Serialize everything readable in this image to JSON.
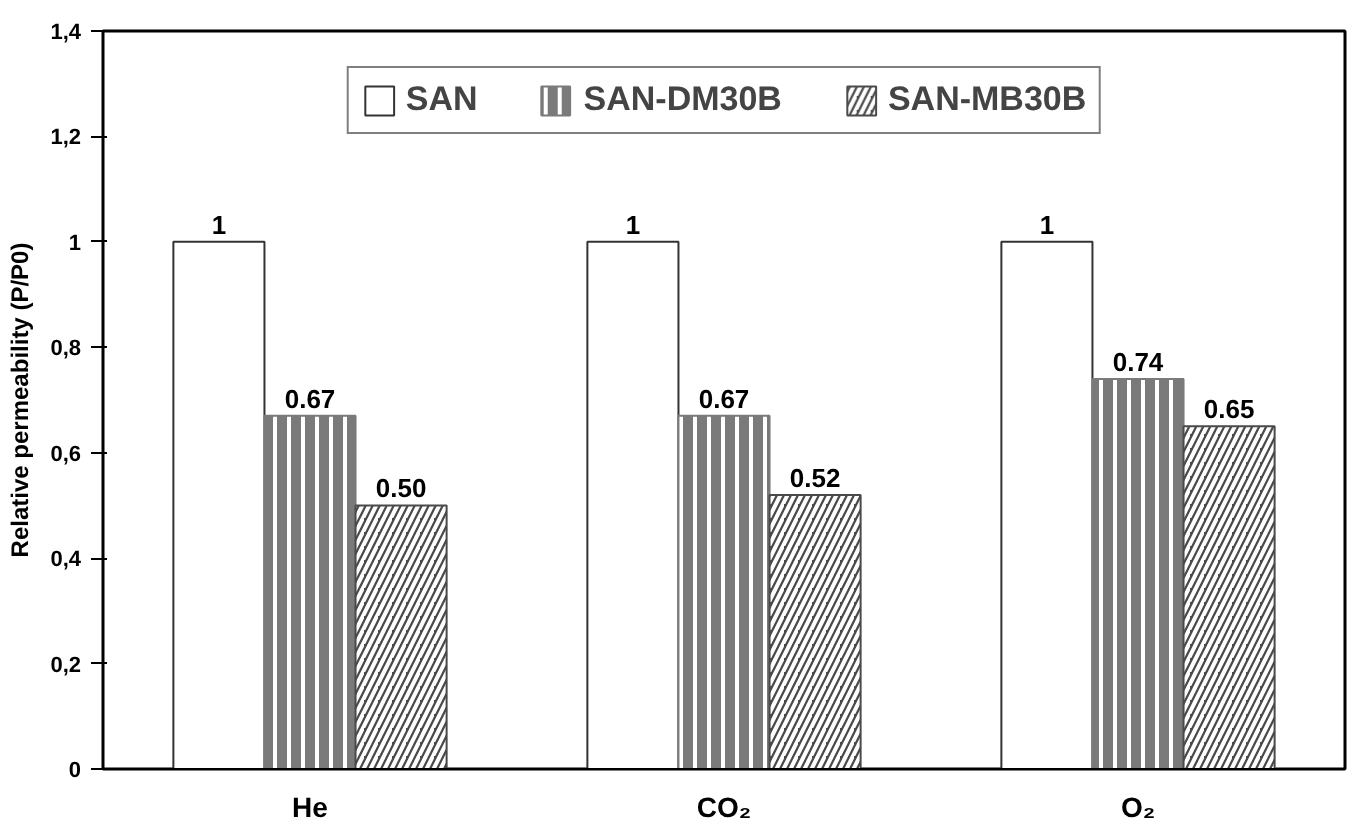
{
  "chart_data": {
    "type": "bar",
    "ylabel": "Relative permeability (P/P0)",
    "categories": [
      "He",
      "CO₂",
      "O₂"
    ],
    "series": [
      {
        "name": "SAN",
        "color": "#ffffff",
        "values": [
          1,
          1,
          1
        ],
        "value_labels": [
          "1",
          "1",
          "1"
        ]
      },
      {
        "name": "SAN-DM30B",
        "color": "#7a7a7a",
        "values": [
          0.67,
          0.67,
          0.74
        ],
        "value_labels": [
          "0.67",
          "0.67",
          "0.74"
        ]
      },
      {
        "name": "SAN-MB30B",
        "color": "#4a4a4a",
        "values": [
          0.5,
          0.52,
          0.65
        ],
        "value_labels": [
          "0.50",
          "0.52",
          "0.65"
        ]
      }
    ],
    "ylim": [
      0,
      1.4
    ],
    "yticks": [
      0,
      {
        "value": 0.2,
        "label": "0,2"
      },
      {
        "value": 0.4,
        "label": "0,4"
      },
      {
        "value": 0.6,
        "label": "0,6"
      },
      {
        "value": 0.8,
        "label": "0,8"
      },
      1,
      {
        "value": 1.2,
        "label": "1,2"
      },
      {
        "value": 1.4,
        "label": "1,4"
      }
    ],
    "grid": false,
    "legend": "top"
  }
}
